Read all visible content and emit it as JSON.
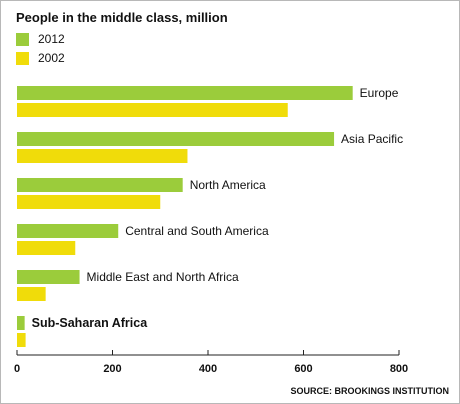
{
  "chart_data": {
    "type": "bar",
    "orientation": "horizontal",
    "title": "People in the middle class, million",
    "categories": [
      "Europe",
      "Asia Pacific",
      "North America",
      "Central and South America",
      "Middle East and North Africa",
      "Sub-Saharan Africa"
    ],
    "highlighted_category": "Sub-Saharan Africa",
    "series": [
      {
        "name": "2012",
        "color": "#9bcc3b",
        "values": [
          703,
          664,
          347,
          212,
          131,
          16
        ]
      },
      {
        "name": "2002",
        "color": "#f0dc0a",
        "values": [
          567,
          357,
          300,
          122,
          60,
          18
        ]
      }
    ],
    "xlim": [
      0,
      800
    ],
    "xticks": [
      0,
      200,
      400,
      600,
      800
    ],
    "xtick_labels": [
      "0",
      "200",
      "400",
      "600",
      "800"
    ],
    "xlabel": "",
    "ylabel": "",
    "grid": false,
    "legend_placement": "top-left",
    "source": "SOURCE: BROOKINGS INSTITUTION"
  }
}
